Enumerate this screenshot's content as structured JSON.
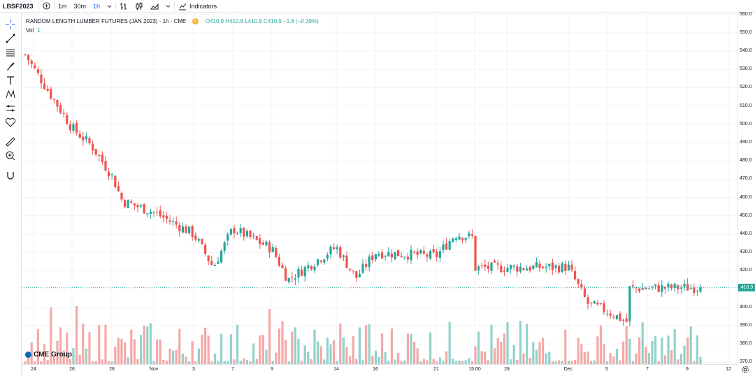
{
  "topbar": {
    "symbol": "LBSF2023",
    "intervals": [
      "1m",
      "30m",
      "1h"
    ],
    "active_interval": "1h",
    "indicators_label": "Indicators"
  },
  "legend": {
    "title": "RANDOM LENGTH LUMBER FUTURES (JAN 2023) · 1h · CME",
    "badge": "D",
    "ohlc": "O410.9 H410.9 L410.9 C410.9 −1.6 (−0.39%)",
    "volume_label": "Vol",
    "volume_value": "1"
  },
  "branding": {
    "name": "CME Group"
  },
  "colors": {
    "up": "#26a69a",
    "down": "#ef5350",
    "up_vol": "#93d2cb",
    "down_vol": "#f4a9a7",
    "price_line": "#26a69a"
  },
  "price_axis": {
    "ticks": [
      "560.0",
      "550.0",
      "540.0",
      "530.0",
      "520.0",
      "510.0",
      "500.0",
      "490.0",
      "480.0",
      "470.0",
      "460.0",
      "450.0",
      "440.0",
      "430.0",
      "420.0",
      "410.0",
      "400.0",
      "390.0",
      "380.0",
      "370.0"
    ],
    "last_price": "410.9"
  },
  "time_axis": {
    "ticks": [
      "24",
      "26",
      "28",
      "Nov",
      "3",
      "7",
      "9",
      "14",
      "16",
      "21",
      "15:00",
      "28",
      "Dec",
      "5",
      "7",
      "9",
      "12"
    ]
  },
  "chart_data": {
    "type": "candlestick",
    "ylim": [
      369,
      561
    ],
    "last_price": 410.9,
    "x_ticks": [
      "24",
      "26",
      "28",
      "Nov",
      "3",
      "7",
      "9",
      "14",
      "16",
      "21",
      "15:00",
      "28",
      "Dec",
      "5",
      "7",
      "9",
      "12"
    ],
    "key_points": [
      {
        "x": "24",
        "close": 538
      },
      {
        "x": "26",
        "close": 498
      },
      {
        "x": "26",
        "close": 488
      },
      {
        "x": "28",
        "close": 472
      },
      {
        "x": "28",
        "close": 458
      },
      {
        "x": "Nov",
        "close": 452
      },
      {
        "x": "3",
        "close": 440
      },
      {
        "x": "3",
        "close": 422
      },
      {
        "x": "7",
        "close": 443
      },
      {
        "x": "9",
        "close": 432
      },
      {
        "x": "9",
        "close": 415
      },
      {
        "x": "14",
        "close": 433
      },
      {
        "x": "14",
        "close": 416
      },
      {
        "x": "16",
        "close": 430
      },
      {
        "x": "21",
        "close": 428
      },
      {
        "x": "21",
        "close": 440
      },
      {
        "x": "15:00",
        "close": 438
      },
      {
        "x": "28",
        "close": 418
      },
      {
        "x": "28",
        "close": 420
      },
      {
        "x": "Dec",
        "close": 422
      },
      {
        "x": "Dec",
        "close": 402
      },
      {
        "x": "5",
        "close": 398
      },
      {
        "x": "5",
        "close": 392
      },
      {
        "x": "7",
        "close": 400
      },
      {
        "x": "7",
        "close": 430
      },
      {
        "x": "7",
        "close": 427
      },
      {
        "x": "9",
        "close": 408
      },
      {
        "x": "9",
        "close": 410.9
      }
    ]
  }
}
